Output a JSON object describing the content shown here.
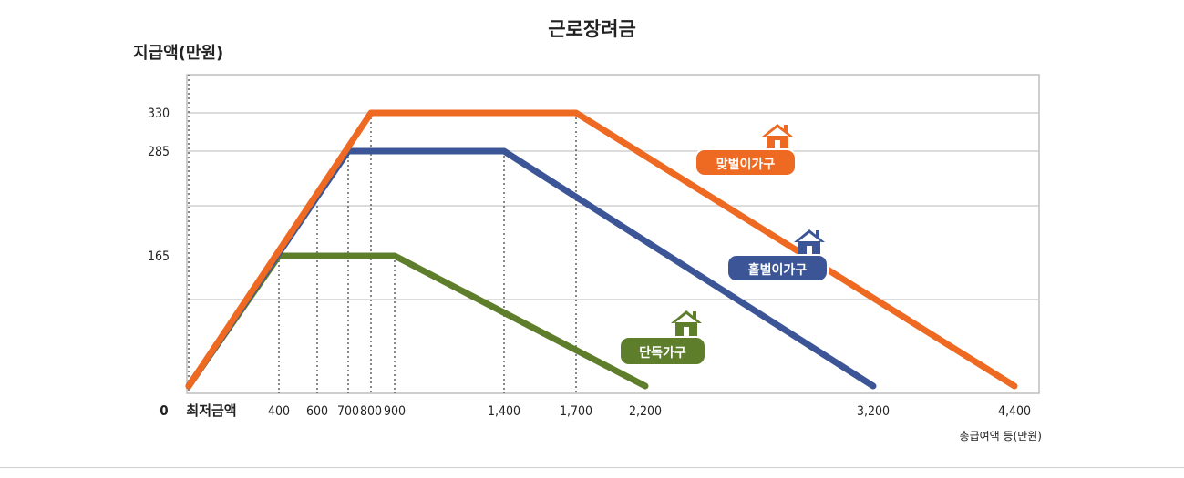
{
  "chart_data": {
    "type": "line",
    "title": "근로장려금",
    "ylabel": "지급액(만원)",
    "xlabel": "총급여액 등(만원)",
    "x_origin_label": "0",
    "x_min_wage_label": "최저금액",
    "yticks": [
      {
        "value": 165,
        "label": "165"
      },
      {
        "value": 285,
        "label": "285"
      },
      {
        "value": 330,
        "label": "330"
      }
    ],
    "xticks": [
      {
        "value": 400,
        "label": "400"
      },
      {
        "value": 600,
        "label": "600"
      },
      {
        "value": 700,
        "label": "700"
      },
      {
        "value": 800,
        "label": "800"
      },
      {
        "value": 900,
        "label": "900"
      },
      {
        "value": 1400,
        "label": "1,400"
      },
      {
        "value": 1700,
        "label": "1,700"
      },
      {
        "value": 2200,
        "label": "2,200"
      },
      {
        "value": 3200,
        "label": "3,200"
      },
      {
        "value": 4400,
        "label": "4,400"
      }
    ],
    "series": [
      {
        "name": "맞벌이가구",
        "color": "#ee6a22",
        "points": [
          [
            0,
            0
          ],
          [
            800,
            330
          ],
          [
            1700,
            330
          ],
          [
            4400,
            0
          ]
        ]
      },
      {
        "name": "홑벌이가구",
        "color": "#3b5597",
        "points": [
          [
            0,
            0
          ],
          [
            700,
            285
          ],
          [
            1400,
            285
          ],
          [
            3200,
            0
          ]
        ]
      },
      {
        "name": "단독가구",
        "color": "#5e7e2c",
        "points": [
          [
            0,
            0
          ],
          [
            400,
            165
          ],
          [
            900,
            165
          ],
          [
            2200,
            0
          ]
        ]
      }
    ],
    "icons": [
      "house-icon"
    ]
  }
}
